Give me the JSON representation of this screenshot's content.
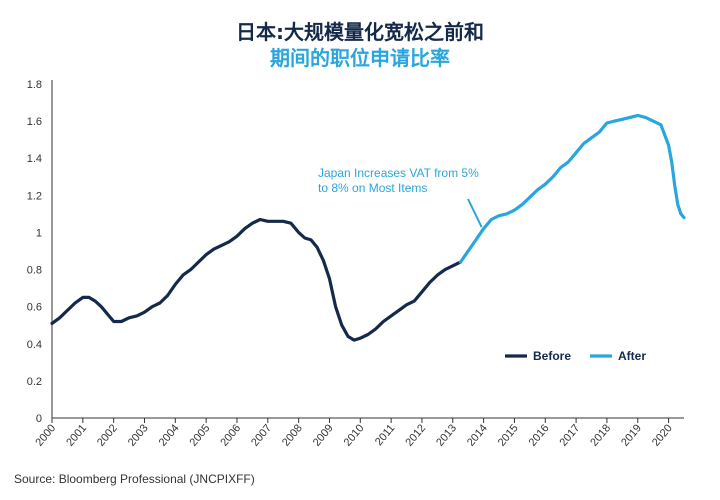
{
  "title_line1": "日本:大规模量化宽松之前和",
  "title_line2": "期间的职位申请比率",
  "source": "Source: Bloomberg Professional (JNCPIXFF)",
  "colors": {
    "before": "#15294a",
    "after": "#2aa6dc",
    "title1": "#15294a",
    "title2": "#2aa6dc"
  },
  "chart_data": {
    "type": "line",
    "title": "日本:大规模量化宽松之前和期间的职位申请比率",
    "xlabel": "",
    "ylabel": "",
    "ylim": [
      0,
      1.8
    ],
    "xlim": [
      2000,
      2020.5
    ],
    "y_ticks": [
      "0",
      "0.2",
      "0.4",
      "0.6",
      "0.8",
      "1",
      "1.2",
      "1.4",
      "1.6",
      "1.8"
    ],
    "x_ticks": [
      "2000",
      "2001",
      "2002",
      "2003",
      "2004",
      "2005",
      "2006",
      "2007",
      "2008",
      "2009",
      "2010",
      "2011",
      "2012",
      "2013",
      "2014",
      "2015",
      "2016",
      "2017",
      "2018",
      "2019",
      "2020"
    ],
    "grid": false,
    "legend_position": "bottom-right",
    "annotation": {
      "line1": "Japan Increases VAT from 5%",
      "line2": "to 8% on Most Items",
      "x": 2014,
      "y": 1.04
    },
    "series": [
      {
        "name": "Before",
        "color": "#15294a",
        "x": [
          2000.0,
          2000.25,
          2000.5,
          2000.75,
          2001.0,
          2001.2,
          2001.4,
          2001.6,
          2001.8,
          2002.0,
          2002.25,
          2002.5,
          2002.75,
          2003.0,
          2003.25,
          2003.5,
          2003.75,
          2004.0,
          2004.25,
          2004.5,
          2004.75,
          2005.0,
          2005.25,
          2005.5,
          2005.75,
          2006.0,
          2006.25,
          2006.5,
          2006.75,
          2007.0,
          2007.25,
          2007.5,
          2007.75,
          2008.0,
          2008.2,
          2008.4,
          2008.6,
          2008.8,
          2009.0,
          2009.2,
          2009.4,
          2009.6,
          2009.8,
          2010.0,
          2010.25,
          2010.5,
          2010.75,
          2011.0,
          2011.25,
          2011.5,
          2011.75,
          2012.0,
          2012.25,
          2012.5,
          2012.75,
          2013.0,
          2013.25
        ],
        "y": [
          0.51,
          0.54,
          0.58,
          0.62,
          0.65,
          0.65,
          0.63,
          0.6,
          0.56,
          0.52,
          0.52,
          0.54,
          0.55,
          0.57,
          0.6,
          0.62,
          0.66,
          0.72,
          0.77,
          0.8,
          0.84,
          0.88,
          0.91,
          0.93,
          0.95,
          0.98,
          1.02,
          1.05,
          1.07,
          1.06,
          1.06,
          1.06,
          1.05,
          1.0,
          0.97,
          0.96,
          0.92,
          0.85,
          0.75,
          0.6,
          0.5,
          0.44,
          0.42,
          0.43,
          0.45,
          0.48,
          0.52,
          0.55,
          0.58,
          0.61,
          0.63,
          0.68,
          0.73,
          0.77,
          0.8,
          0.82,
          0.84
        ]
      },
      {
        "name": "After",
        "color": "#2aa6dc",
        "x": [
          2013.25,
          2013.5,
          2013.75,
          2014.0,
          2014.25,
          2014.5,
          2014.75,
          2015.0,
          2015.25,
          2015.5,
          2015.75,
          2016.0,
          2016.25,
          2016.5,
          2016.75,
          2017.0,
          2017.25,
          2017.5,
          2017.75,
          2018.0,
          2018.25,
          2018.5,
          2018.75,
          2019.0,
          2019.25,
          2019.5,
          2019.75,
          2020.0,
          2020.1,
          2020.2,
          2020.3,
          2020.4,
          2020.5
        ],
        "y": [
          0.84,
          0.9,
          0.96,
          1.02,
          1.07,
          1.09,
          1.1,
          1.12,
          1.15,
          1.19,
          1.23,
          1.26,
          1.3,
          1.35,
          1.38,
          1.43,
          1.48,
          1.51,
          1.54,
          1.59,
          1.6,
          1.61,
          1.62,
          1.63,
          1.62,
          1.6,
          1.58,
          1.47,
          1.38,
          1.25,
          1.15,
          1.1,
          1.08
        ]
      }
    ]
  }
}
